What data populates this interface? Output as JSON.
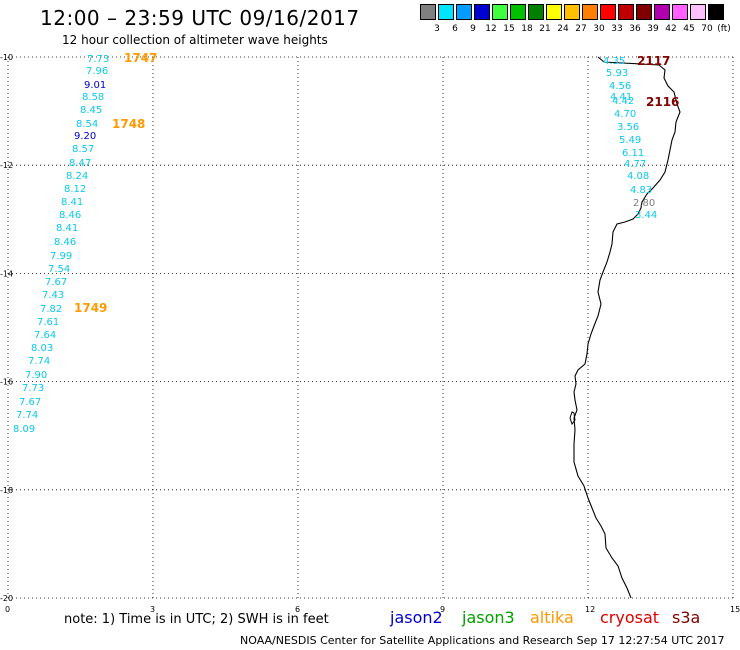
{
  "title": "12:00 – 23:59 UTC 09/16/2017",
  "subtitle": "12 hour collection of altimeter wave heights",
  "legend": {
    "unit": "(ft)",
    "items": [
      {
        "color": "#808080",
        "label": "3"
      },
      {
        "color": "#00e5ff",
        "label": "6"
      },
      {
        "color": "#009cff",
        "label": "9"
      },
      {
        "color": "#0000d0",
        "label": "12"
      },
      {
        "color": "#40ff40",
        "label": "15"
      },
      {
        "color": "#00c000",
        "label": "18"
      },
      {
        "color": "#008000",
        "label": "21"
      },
      {
        "color": "#ffff00",
        "label": "24"
      },
      {
        "color": "#ffc000",
        "label": "27"
      },
      {
        "color": "#ff8000",
        "label": "30"
      },
      {
        "color": "#ff0000",
        "label": "33"
      },
      {
        "color": "#c00000",
        "label": "36"
      },
      {
        "color": "#800000",
        "label": "39"
      },
      {
        "color": "#b000b0",
        "label": "42"
      },
      {
        "color": "#ff60ff",
        "label": "45"
      },
      {
        "color": "#ffc0ff",
        "label": "70"
      },
      {
        "color": "#000000",
        "label": ""
      }
    ]
  },
  "chart_data": {
    "type": "scatter",
    "xlim": [
      0,
      15
    ],
    "ylim": [
      -20,
      -10
    ],
    "x_ticks": [
      "0",
      "3",
      "6",
      "9",
      "12",
      "15"
    ],
    "y_ticks": [
      "-10",
      "-12",
      "-14",
      "-16",
      "-18",
      "-20"
    ],
    "grid": true,
    "tracks": [
      {
        "label": "1747",
        "color": "#ff9900"
      },
      {
        "label": "1748",
        "color": "#ff9900"
      },
      {
        "label": "1749",
        "color": "#ff9900"
      },
      {
        "label": "2117",
        "color": "#800000"
      },
      {
        "label": "2116",
        "color": "#800000"
      }
    ],
    "points_west": [
      {
        "v": "7.73",
        "c": "#0bc8e8"
      },
      {
        "v": "7.96",
        "c": "#0bc8e8"
      },
      {
        "v": "9.01",
        "c": "#0000c8"
      },
      {
        "v": "8.58",
        "c": "#0bc8e8"
      },
      {
        "v": "8.45",
        "c": "#0bc8e8"
      },
      {
        "v": "8.54",
        "c": "#0bc8e8"
      },
      {
        "v": "9.20",
        "c": "#0000c8"
      },
      {
        "v": "8.57",
        "c": "#0bc8e8"
      },
      {
        "v": "8.47",
        "c": "#0bc8e8"
      },
      {
        "v": "8.24",
        "c": "#0bc8e8"
      },
      {
        "v": "8.12",
        "c": "#0bc8e8"
      },
      {
        "v": "8.41",
        "c": "#0bc8e8"
      },
      {
        "v": "8.46",
        "c": "#0bc8e8"
      },
      {
        "v": "8.41",
        "c": "#0bc8e8"
      },
      {
        "v": "8.46",
        "c": "#0bc8e8"
      },
      {
        "v": "7.99",
        "c": "#0bc8e8"
      },
      {
        "v": "7.54",
        "c": "#0bc8e8"
      },
      {
        "v": "7.67",
        "c": "#0bc8e8"
      },
      {
        "v": "7.43",
        "c": "#0bc8e8"
      },
      {
        "v": "7.82",
        "c": "#0bc8e8"
      },
      {
        "v": "7.61",
        "c": "#0bc8e8"
      },
      {
        "v": "7.64",
        "c": "#0bc8e8"
      },
      {
        "v": "8.03",
        "c": "#0bc8e8"
      },
      {
        "v": "7.74",
        "c": "#0bc8e8"
      },
      {
        "v": "7.90",
        "c": "#0bc8e8"
      },
      {
        "v": "7.73",
        "c": "#0bc8e8"
      },
      {
        "v": "7.67",
        "c": "#0bc8e8"
      },
      {
        "v": "7.74",
        "c": "#0bc8e8"
      },
      {
        "v": "8.09",
        "c": "#0bc8e8"
      }
    ],
    "points_east": [
      {
        "v": "4.35",
        "c": "#0bc8e8"
      },
      {
        "v": "5.93",
        "c": "#0bc8e8"
      },
      {
        "v": "4.56",
        "c": "#0bc8e8"
      },
      {
        "v": "4.41",
        "c": "#0bc8e8"
      },
      {
        "v": "4.42",
        "c": "#0bc8e8"
      },
      {
        "v": "4.70",
        "c": "#0bc8e8"
      },
      {
        "v": "3.56",
        "c": "#0bc8e8"
      },
      {
        "v": "5.49",
        "c": "#0bc8e8"
      },
      {
        "v": "6.11",
        "c": "#0bc8e8"
      },
      {
        "v": "4.77",
        "c": "#0bc8e8"
      },
      {
        "v": "4.08",
        "c": "#0bc8e8"
      },
      {
        "v": "4.83",
        "c": "#0bc8e8"
      },
      {
        "v": "2.80",
        "c": "#808080"
      },
      {
        "v": "3.44",
        "c": "#0bc8e8"
      }
    ]
  },
  "note": {
    "text": "note:  1) Time is in UTC;  2) SWH is in feet",
    "satellites": [
      {
        "name": "jason2",
        "color": "#0000d0"
      },
      {
        "name": "jason3",
        "color": "#00a000"
      },
      {
        "name": "altika",
        "color": "#ff9900"
      },
      {
        "name": "cryosat",
        "color": "#e00000"
      },
      {
        "name": "s3a",
        "color": "#800000"
      }
    ]
  },
  "footer": "NOAA/NESDIS Center for Satellite Applications and Research    Sep 17 12:27:54 UTC 2017"
}
